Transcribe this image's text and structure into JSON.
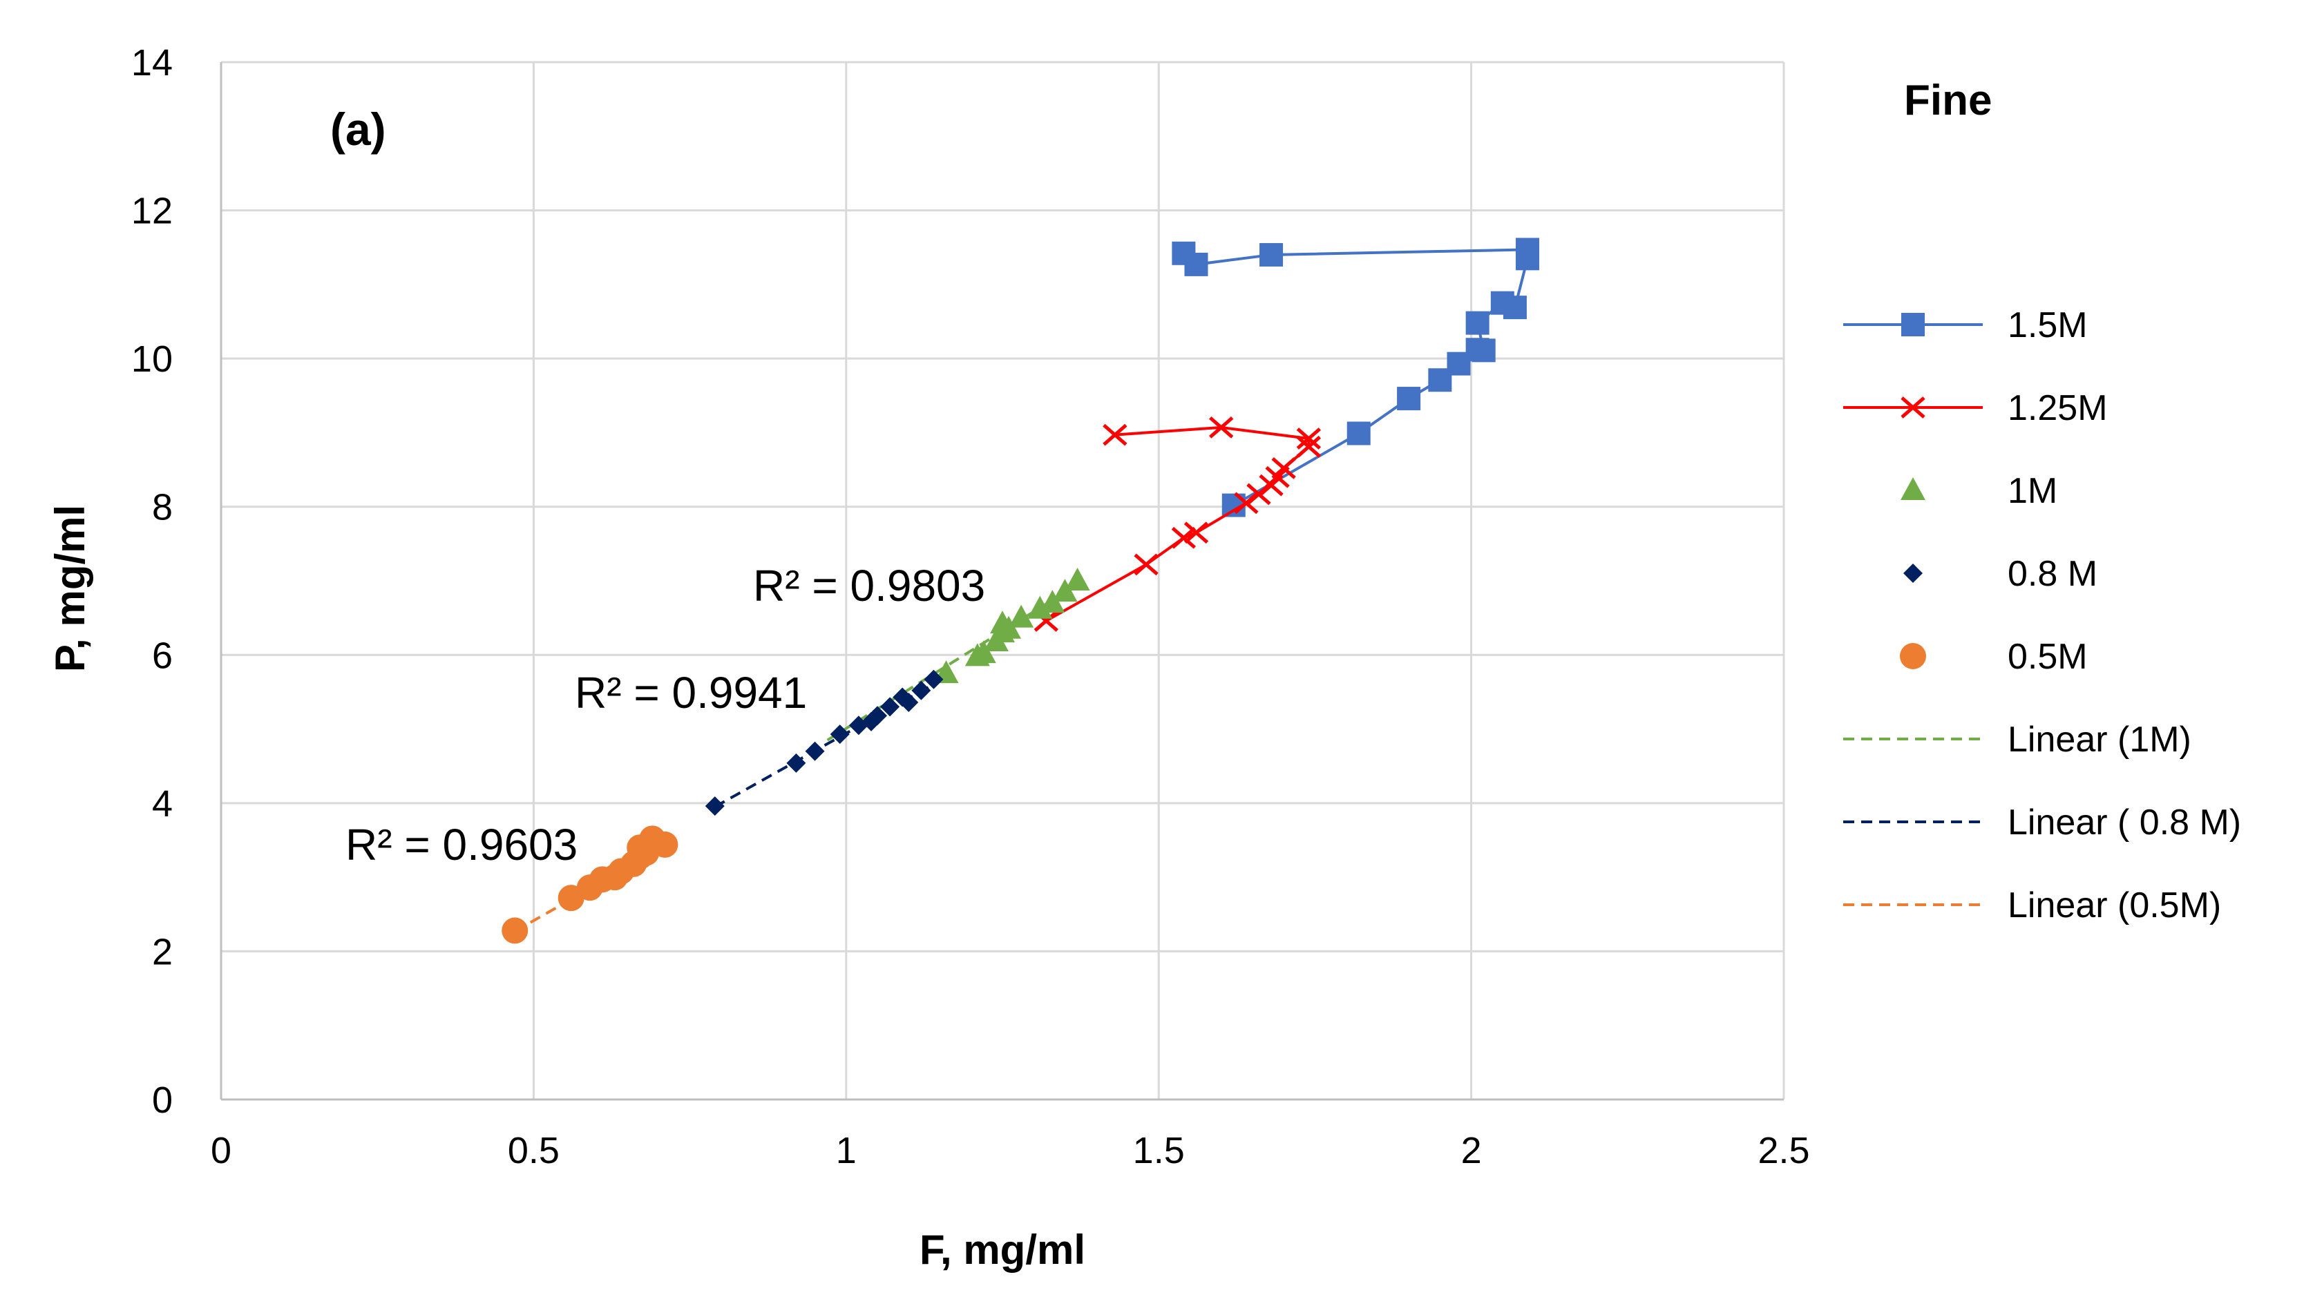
{
  "chart_data": {
    "type": "scatter",
    "panel_label": "(a)",
    "legend_title": "Fine",
    "xlabel": "F, mg/ml",
    "ylabel": "P, mg/ml",
    "xlim": [
      0,
      2.5
    ],
    "ylim": [
      0,
      14
    ],
    "xticks": [
      0,
      0.5,
      1,
      1.5,
      2,
      2.5
    ],
    "xtick_labels": [
      "0",
      "0.5",
      "1",
      "1.5",
      "2",
      "2.5"
    ],
    "yticks": [
      0,
      2,
      4,
      6,
      8,
      10,
      12,
      14
    ],
    "ytick_labels": [
      "0",
      "2",
      "4",
      "6",
      "8",
      "10",
      "12",
      "14"
    ],
    "grid": true,
    "legend_position": "right",
    "series": [
      {
        "name": "1.5M",
        "marker": "square",
        "line": "solid",
        "color": "#4472C4",
        "points": [
          [
            1.62,
            8.02
          ],
          [
            1.82,
            8.99
          ],
          [
            1.9,
            9.46
          ],
          [
            1.95,
            9.71
          ],
          [
            1.98,
            9.93
          ],
          [
            2.01,
            10.12
          ],
          [
            2.02,
            10.11
          ],
          [
            2.01,
            10.48
          ],
          [
            2.05,
            10.75
          ],
          [
            2.07,
            10.69
          ],
          [
            2.09,
            11.35
          ],
          [
            2.09,
            11.47
          ],
          [
            1.68,
            11.4
          ],
          [
            1.56,
            11.27
          ],
          [
            1.54,
            11.42
          ]
        ]
      },
      {
        "name": "1.25M",
        "marker": "x",
        "line": "solid",
        "color": "#FF0000",
        "points": [
          [
            1.32,
            6.46
          ],
          [
            1.48,
            7.22
          ],
          [
            1.54,
            7.58
          ],
          [
            1.56,
            7.65
          ],
          [
            1.64,
            8.05
          ],
          [
            1.66,
            8.17
          ],
          [
            1.68,
            8.29
          ],
          [
            1.69,
            8.4
          ],
          [
            1.7,
            8.52
          ],
          [
            1.74,
            8.81
          ],
          [
            1.74,
            8.92
          ],
          [
            1.6,
            9.07
          ],
          [
            1.43,
            8.97
          ]
        ]
      },
      {
        "name": "1M",
        "marker": "triangle",
        "line": "none",
        "color": "#70AD47",
        "points": [
          [
            1.16,
            5.75
          ],
          [
            1.21,
            5.98
          ],
          [
            1.22,
            6.02
          ],
          [
            1.24,
            6.18
          ],
          [
            1.25,
            6.3
          ],
          [
            1.25,
            6.42
          ],
          [
            1.26,
            6.35
          ],
          [
            1.28,
            6.5
          ],
          [
            1.31,
            6.62
          ],
          [
            1.33,
            6.7
          ],
          [
            1.35,
            6.85
          ],
          [
            1.37,
            7.0
          ]
        ]
      },
      {
        "name": " 0.8 M",
        "marker": "diamond",
        "line": "none",
        "color": "#002060",
        "points": [
          [
            0.79,
            3.96
          ],
          [
            0.92,
            4.54
          ],
          [
            0.95,
            4.7
          ],
          [
            0.99,
            4.93
          ],
          [
            1.02,
            5.05
          ],
          [
            1.04,
            5.1
          ],
          [
            1.05,
            5.18
          ],
          [
            1.07,
            5.3
          ],
          [
            1.09,
            5.43
          ],
          [
            1.1,
            5.36
          ],
          [
            1.12,
            5.52
          ],
          [
            1.14,
            5.67
          ]
        ]
      },
      {
        "name": "0.5M",
        "marker": "circle",
        "line": "none",
        "color": "#ED7D31",
        "points": [
          [
            0.47,
            2.28
          ],
          [
            0.56,
            2.72
          ],
          [
            0.59,
            2.86
          ],
          [
            0.61,
            2.97
          ],
          [
            0.63,
            3.0
          ],
          [
            0.64,
            3.08
          ],
          [
            0.66,
            3.18
          ],
          [
            0.67,
            3.28
          ],
          [
            0.67,
            3.4
          ],
          [
            0.68,
            3.33
          ],
          [
            0.69,
            3.52
          ],
          [
            0.71,
            3.44
          ]
        ]
      },
      {
        "name": "Linear (1M)",
        "type": "trendline",
        "line": "dashed",
        "color": "#70AD47",
        "points": [
          [
            0.97,
            4.85
          ],
          [
            1.37,
            6.95
          ]
        ],
        "r_squared_label": "R² = 0.9803"
      },
      {
        "name": "Linear ( 0.8 M)",
        "type": "trendline",
        "line": "dashed",
        "color": "#002060",
        "points": [
          [
            0.79,
            3.95
          ],
          [
            1.15,
            5.65
          ]
        ],
        "r_squared_label": "R² = 0.9941"
      },
      {
        "name": "Linear (0.5M)",
        "type": "trendline",
        "line": "dashed",
        "color": "#ED7D31",
        "points": [
          [
            0.47,
            2.27
          ],
          [
            0.71,
            3.42
          ]
        ],
        "r_squared_label": "R² = 0.9603"
      }
    ]
  }
}
